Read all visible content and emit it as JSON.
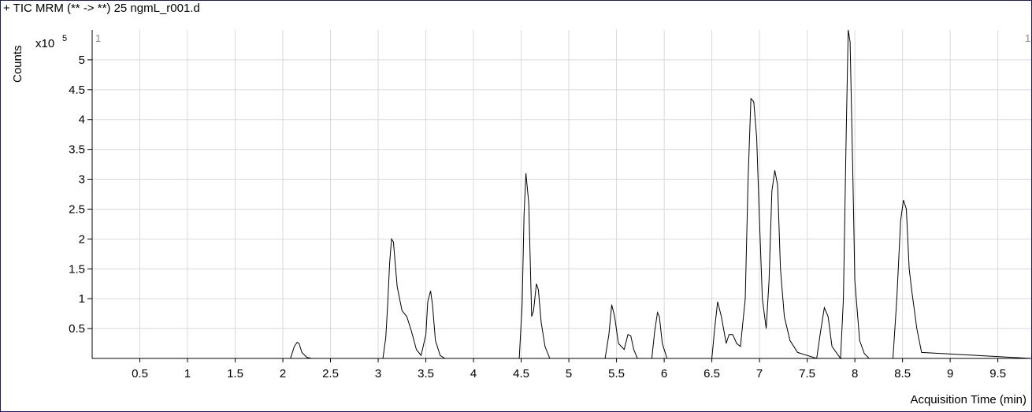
{
  "chart_data": {
    "type": "line",
    "title": "+ TIC MRM (** -> **) 25 ngmL_r001.d",
    "ylabel": "Counts",
    "y_multiplier": "x10",
    "y_exponent": "5",
    "xlabel": "Acquisition Time (min)",
    "segment_label_left": "1",
    "segment_label_right": "1",
    "xlim": [
      0,
      9.85
    ],
    "ylim": [
      0,
      5.5
    ],
    "x_ticks": [
      "0.5",
      "1",
      "1.5",
      "2",
      "2.5",
      "3",
      "3.5",
      "4",
      "4.5",
      "5",
      "5.5",
      "6",
      "6.5",
      "7",
      "7.5",
      "8",
      "8.5",
      "9",
      "9.5"
    ],
    "y_ticks": [
      "0.5",
      "1",
      "1.5",
      "2",
      "2.5",
      "3",
      "3.5",
      "4",
      "4.5",
      "5"
    ],
    "grid": true,
    "colors": {
      "line": "#000000",
      "grid": "#d9d9d9",
      "frame": "#1a1a6e",
      "text": "#000000"
    },
    "series": [
      {
        "x": [
          0.0,
          2.08,
          2.12,
          2.15,
          2.17,
          2.2,
          2.25,
          2.3,
          3.05,
          3.08,
          3.1,
          3.12,
          3.14,
          3.16,
          3.2,
          3.25,
          3.3,
          3.35,
          3.4,
          3.45,
          3.5,
          3.52,
          3.55,
          3.57,
          3.6,
          3.65,
          3.7,
          4.48,
          4.51,
          4.53,
          4.55,
          4.58,
          4.61,
          4.63,
          4.66,
          4.68,
          4.71,
          4.75,
          4.8,
          5.38,
          5.42,
          5.45,
          5.48,
          5.52,
          5.58,
          5.62,
          5.65,
          5.68,
          5.72,
          5.87,
          5.9,
          5.93,
          5.95,
          5.98,
          6.03,
          6.5,
          6.53,
          6.56,
          6.6,
          6.65,
          6.68,
          6.72,
          6.76,
          6.8,
          6.85,
          6.88,
          6.91,
          6.94,
          6.97,
          7.0,
          7.03,
          7.07,
          7.1,
          7.13,
          7.16,
          7.19,
          7.22,
          7.26,
          7.32,
          7.4,
          7.6,
          7.64,
          7.68,
          7.72,
          7.76,
          7.85,
          7.88,
          7.91,
          7.93,
          7.95,
          7.98,
          8.0,
          8.05,
          8.1,
          8.15,
          8.4,
          8.44,
          8.48,
          8.51,
          8.54,
          8.57,
          8.6,
          8.65,
          8.7,
          9.85
        ],
        "y": [
          0.0,
          0.0,
          0.2,
          0.27,
          0.25,
          0.1,
          0.02,
          0.0,
          0.0,
          0.35,
          0.9,
          1.6,
          2.0,
          1.95,
          1.2,
          0.8,
          0.7,
          0.45,
          0.15,
          0.05,
          0.4,
          0.95,
          1.13,
          0.9,
          0.3,
          0.05,
          0.0,
          0.0,
          0.9,
          2.4,
          3.1,
          2.6,
          0.7,
          0.8,
          1.25,
          1.15,
          0.6,
          0.2,
          0.0,
          0.0,
          0.4,
          0.9,
          0.7,
          0.25,
          0.15,
          0.4,
          0.38,
          0.15,
          0.0,
          0.0,
          0.45,
          0.77,
          0.7,
          0.25,
          0.0,
          0.0,
          0.5,
          0.95,
          0.7,
          0.25,
          0.4,
          0.4,
          0.25,
          0.2,
          1.0,
          3.0,
          4.35,
          4.3,
          3.7,
          2.3,
          1.0,
          0.5,
          1.3,
          2.8,
          3.15,
          2.9,
          1.5,
          0.7,
          0.3,
          0.1,
          0.0,
          0.45,
          0.85,
          0.7,
          0.2,
          0.0,
          1.0,
          3.8,
          5.5,
          5.3,
          3.0,
          1.3,
          0.3,
          0.08,
          0.0,
          0.0,
          1.0,
          2.3,
          2.65,
          2.5,
          1.5,
          1.1,
          0.5,
          0.1,
          0.0
        ]
      }
    ]
  }
}
